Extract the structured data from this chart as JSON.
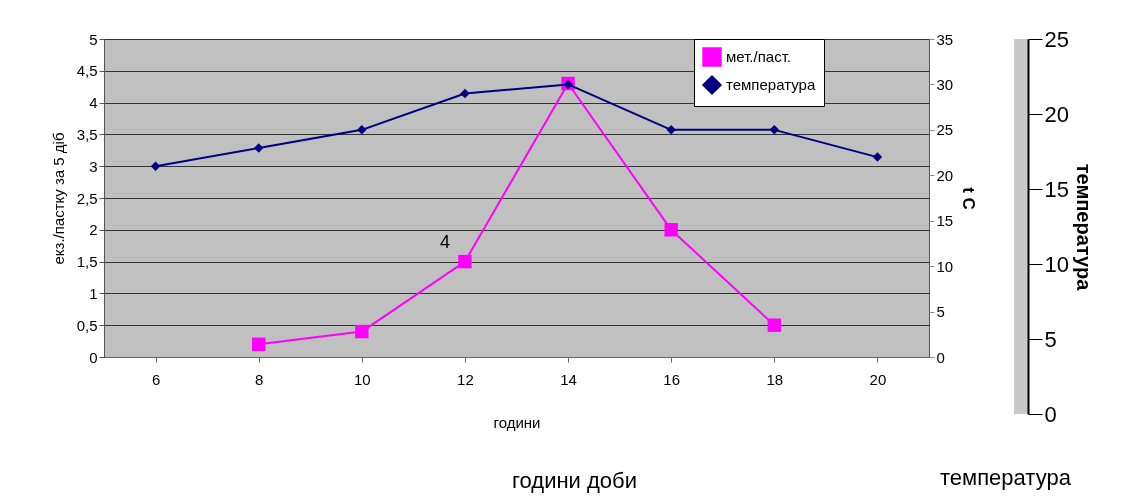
{
  "chart_data": {
    "type": "line",
    "categories": [
      "6",
      "8",
      "10",
      "12",
      "14",
      "16",
      "18",
      "20"
    ],
    "series": [
      {
        "name": "мет./паст.",
        "color": "#ff00ff",
        "marker": "square",
        "values": [
          null,
          0.2,
          0.4,
          1.5,
          4.3,
          2.0,
          0.5,
          null
        ]
      },
      {
        "name": "температура",
        "color": "#000080",
        "marker": "diamond",
        "axis": "y2",
        "values": [
          21,
          23,
          25,
          29,
          30,
          25,
          25,
          22
        ]
      }
    ],
    "xlabel": "години",
    "ylabel": "екз./пастку за 5 діб",
    "y2label": "t C",
    "y3label": "температура",
    "ylim": [
      0,
      5
    ],
    "yticks": [
      0,
      {
        "value": 0.5,
        "label": "0,5"
      },
      1,
      {
        "value": 1.5,
        "label": "1,5"
      },
      2,
      {
        "value": 2.5,
        "label": "2,5"
      },
      3,
      {
        "value": 3.5,
        "label": "3,5"
      },
      4,
      {
        "value": 4.5,
        "label": "4,5"
      },
      5
    ],
    "y2lim": [
      0,
      35
    ],
    "y2ticks": [
      0,
      5,
      10,
      15,
      20,
      25,
      30,
      35
    ],
    "y3lim": [
      0,
      25
    ],
    "y3ticks": [
      0,
      5,
      10,
      15,
      20,
      25
    ],
    "grid": "y",
    "legend": "top right",
    "annotations": [
      "4",
      "години доби",
      "температура"
    ]
  }
}
